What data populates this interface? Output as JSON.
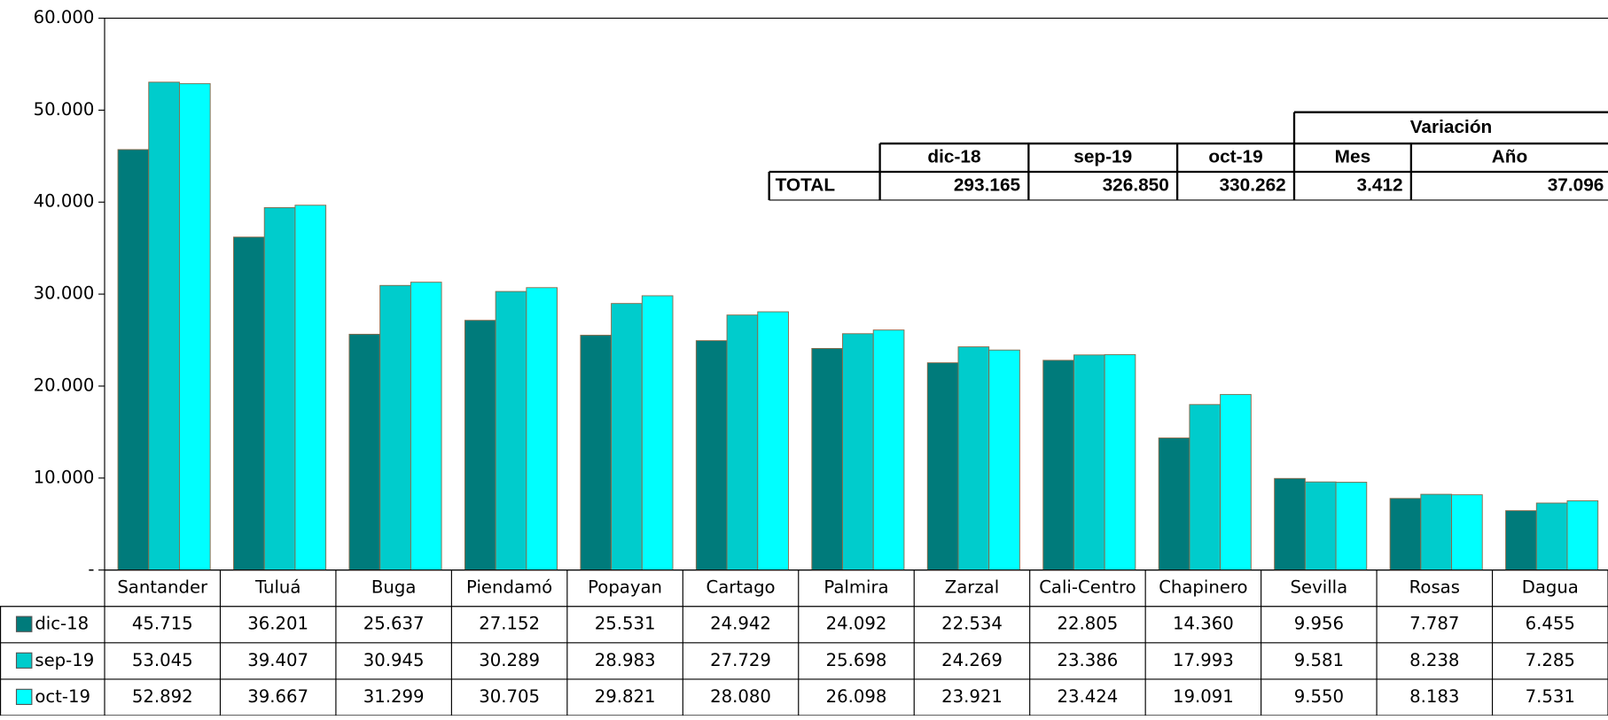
{
  "chart_data": {
    "type": "bar",
    "categories": [
      "Santander",
      "Tuluá",
      "Buga",
      "Piendamó",
      "Popayan",
      "Cartago",
      "Palmira",
      "Zarzal",
      "Cali-Centro",
      "Chapinero",
      "Sevilla",
      "Rosas",
      "Dagua"
    ],
    "series": [
      {
        "name": "dic-18",
        "color": "#007b7b",
        "values": [
          45715,
          36201,
          25637,
          27152,
          25531,
          24942,
          24092,
          22534,
          22805,
          14360,
          9956,
          7787,
          6455
        ],
        "value_labels": [
          "45.715",
          "36.201",
          "25.637",
          "27.152",
          "25.531",
          "24.942",
          "24.092",
          "22.534",
          "22.805",
          "14.360",
          "9.956",
          "7.787",
          "6.455"
        ]
      },
      {
        "name": "sep-19",
        "color": "#00cccc",
        "values": [
          53045,
          39407,
          30945,
          30289,
          28983,
          27729,
          25698,
          24269,
          23386,
          17993,
          9581,
          8238,
          7285
        ],
        "value_labels": [
          "53.045",
          "39.407",
          "30.945",
          "30.289",
          "28.983",
          "27.729",
          "25.698",
          "24.269",
          "23.386",
          "17.993",
          "9.581",
          "8.238",
          "7.285"
        ]
      },
      {
        "name": "oct-19",
        "color": "#00ffff",
        "values": [
          52892,
          39667,
          31299,
          30705,
          29821,
          28080,
          26098,
          23921,
          23424,
          19091,
          9550,
          8183,
          7531
        ],
        "value_labels": [
          "52.892",
          "39.667",
          "31.299",
          "30.705",
          "29.821",
          "28.080",
          "26.098",
          "23.921",
          "23.424",
          "19.091",
          "9.550",
          "8.183",
          "7.531"
        ]
      }
    ],
    "ylim": [
      0,
      60000
    ],
    "yticks": [
      {
        "value": 0,
        "label": "-"
      },
      {
        "value": 10000,
        "label": "10.000"
      },
      {
        "value": 20000,
        "label": "20.000"
      },
      {
        "value": 30000,
        "label": "30.000"
      },
      {
        "value": 40000,
        "label": "40.000"
      },
      {
        "value": 50000,
        "label": "50.000"
      },
      {
        "value": 60000,
        "label": "60.000"
      }
    ],
    "grid": false
  },
  "summary_table": {
    "group_header": "Variación",
    "headers": [
      "dic-18",
      "sep-19",
      "oct-19",
      "Mes",
      "Año"
    ],
    "row_label": "TOTAL",
    "cells": [
      "293.165",
      "326.850",
      "330.262",
      "3.412",
      "37.096"
    ]
  }
}
